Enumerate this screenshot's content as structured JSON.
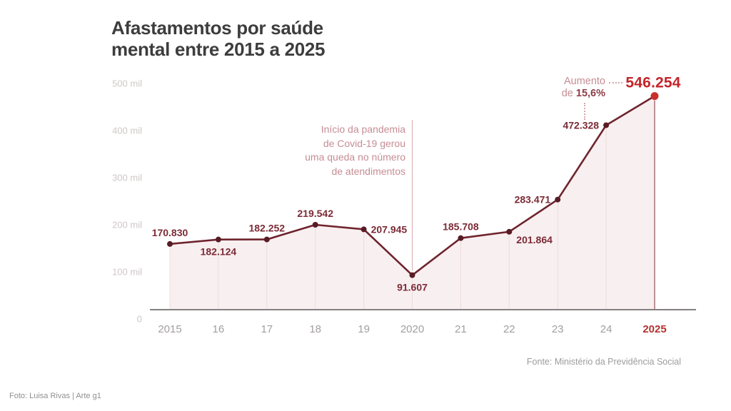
{
  "page": {
    "title": "Afastamentos por saúde\nmental entre 2015 a 2025",
    "source": "Fonte: Ministério da Previdência Social",
    "credit": "Foto: Luisa Rivas | Arte g1"
  },
  "colors": {
    "line": "#6f242e",
    "dot": "#581c25",
    "dot_highlight": "#c9302b",
    "area_fill": "#f8eff0",
    "gridline": "#eedcdc",
    "axis": "#848080",
    "pandemic_line": "#e0b4b9",
    "value_2025_line": "#9c5a64"
  },
  "chart_data": {
    "type": "line",
    "title": "Afastamentos por saúde mental entre 2015 a 2025",
    "x_labels": [
      "2015",
      "16",
      "17",
      "18",
      "19",
      "2020",
      "21",
      "22",
      "23",
      "24",
      "2025"
    ],
    "series": [
      {
        "name": "Afastamentos por saúde mental",
        "values": [
          170830,
          182124,
          182252,
          219542,
          207945,
          91607,
          185708,
          201864,
          283471,
          472328,
          546254
        ]
      }
    ],
    "point_labels": [
      "170.830",
      "182.124",
      "182.252",
      "219.542",
      "207.945",
      "91.607",
      "185.708",
      "201.864",
      "283.471",
      "472.328",
      "546.254"
    ],
    "label_positions": [
      "above",
      "below",
      "above",
      "above",
      "right",
      "below",
      "above",
      "below-right",
      "left",
      "left",
      "featured"
    ],
    "y_ticks": [
      "0",
      "100 mil",
      "200 mil",
      "300 mil",
      "400 mil",
      "500 mil"
    ],
    "ylim": [
      0,
      560000
    ],
    "grid": "faint-vertical-year-lines",
    "legend": "none",
    "annotation_pandemic": {
      "year": "2020",
      "text": "Início da pandemia\nde Covid-19 gerou\numa queda no número\nde atendimentos"
    },
    "annotation_increase": {
      "word1": "Aumento",
      "word2": "de",
      "percent": "15,6%"
    }
  }
}
